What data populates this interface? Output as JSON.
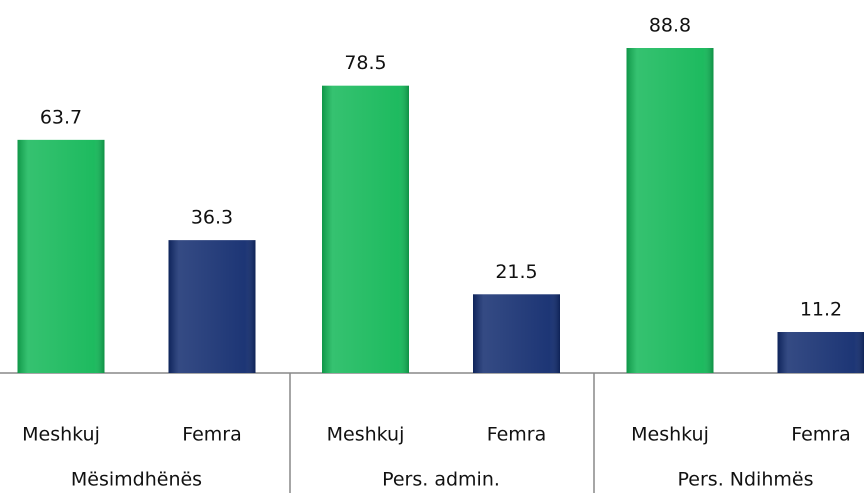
{
  "chart_data": {
    "type": "bar",
    "categories": [
      "Mësimdhënës",
      "Pers. admin.",
      "Pers. Ndihmës"
    ],
    "series": [
      {
        "name": "Meshkuj",
        "color": "#12b757",
        "values": [
          63.7,
          78.5,
          88.8
        ]
      },
      {
        "name": "Femra",
        "color": "#112b6e",
        "values": [
          36.3,
          21.5,
          11.2
        ]
      }
    ]
  }
}
